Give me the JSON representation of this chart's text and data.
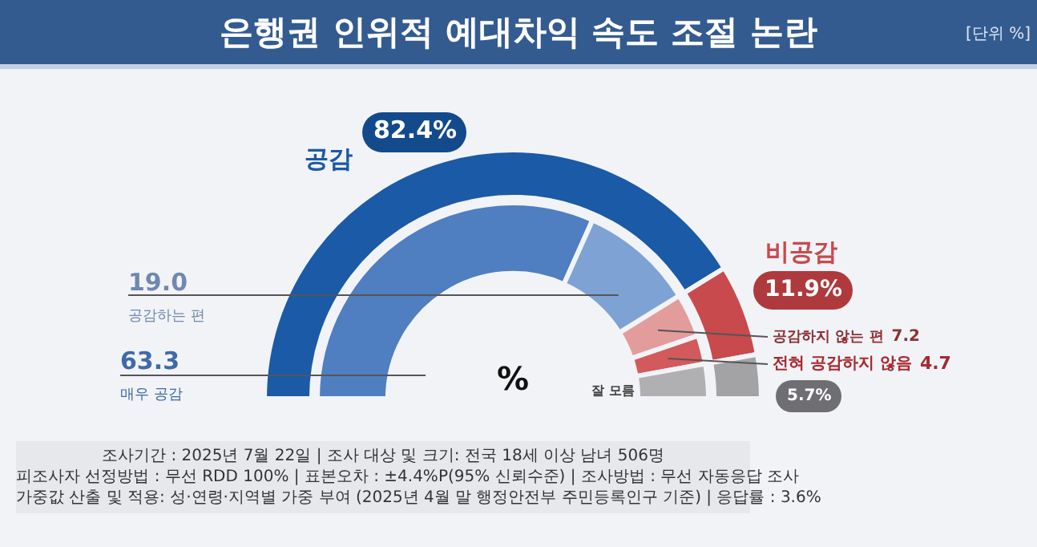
{
  "chart_data": [
    {
      "type": "donut",
      "title": "은행권 인위적 예대차익 속도 조절 논란",
      "subtitle": "[단위 %]",
      "legend": false,
      "categories": [
        "공감",
        "비공감",
        null
      ],
      "values": [
        82.4,
        11.9,
        5.7
      ],
      "colors": [
        "#1b5aa6",
        "#c84a4c",
        "#a3a3a6"
      ],
      "value_labels": [
        "82.4%",
        "11.9%",
        "5.7%"
      ],
      "annotations": [
        "%",
        "조사기간 : 2025년 7월 22일 | 조사 대상 및 크기: 전국 18세 이상 남녀 506명",
        "피조사자 선정방법 : 무선 RDD 100% | 표본오차 : ±4.4%P(95% 신뢰수준) | 조사방법 : 무선 자동응답 조사",
        "가중값 산출 및 적용: 성·연령·지역별 가중 부여 (2025년 4월 말 행정안전부 주민등록인구 기준) | 응답률 : 3.6%"
      ]
    },
    {
      "type": "donut",
      "categories": [
        "매우 공감",
        "공감하는 편",
        "공감하지 않는 편",
        "전혀 공감하지 않음",
        "잘 모름"
      ],
      "values": [
        63.3,
        19.0,
        7.2,
        4.7,
        5.7
      ],
      "colors": [
        "#4f7fc0",
        "#7ea2d4",
        "#e39c9c",
        "#d35a5c",
        "#b0b0b3"
      ],
      "value_labels": [
        "63.3",
        "19.0",
        "7.2",
        "4.7",
        null
      ]
    }
  ]
}
